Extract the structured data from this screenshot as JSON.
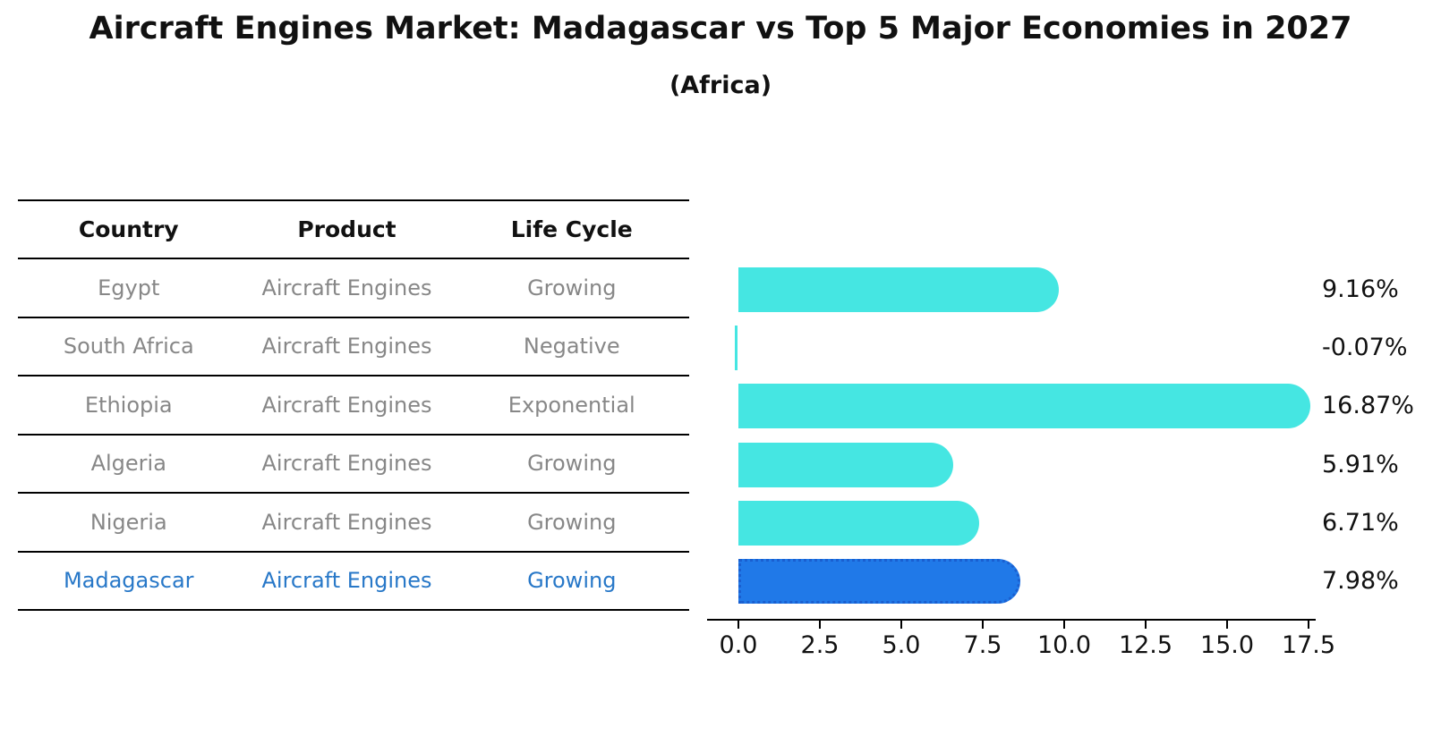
{
  "title": "Aircraft Engines Market: Madagascar vs Top 5 Major Economies in 2027",
  "subtitle": "(Africa)",
  "table": {
    "columns": [
      "Country",
      "Product",
      "Life Cycle"
    ],
    "rows": [
      {
        "country": "Egypt",
        "product": "Aircraft Engines",
        "life_cycle": "Growing",
        "highlight": false
      },
      {
        "country": "South Africa",
        "product": "Aircraft Engines",
        "life_cycle": "Negative",
        "highlight": false
      },
      {
        "country": "Ethiopia",
        "product": "Aircraft Engines",
        "life_cycle": "Exponential",
        "highlight": false
      },
      {
        "country": "Algeria",
        "product": "Aircraft Engines",
        "life_cycle": "Growing",
        "highlight": false
      },
      {
        "country": "Nigeria",
        "product": "Aircraft Engines",
        "life_cycle": "Growing",
        "highlight": false
      },
      {
        "country": "Madagascar",
        "product": "Aircraft Engines",
        "life_cycle": "Growing",
        "highlight": true
      }
    ]
  },
  "chart_data": {
    "type": "bar",
    "orientation": "horizontal",
    "title": "Aircraft Engines Market: Madagascar vs Top 5 Major Economies in 2027",
    "subtitle": "(Africa)",
    "categories": [
      "Egypt",
      "South Africa",
      "Ethiopia",
      "Algeria",
      "Nigeria",
      "Madagascar"
    ],
    "values": [
      9.16,
      -0.07,
      16.87,
      5.91,
      6.71,
      7.98
    ],
    "value_labels": [
      "9.16%",
      "-0.07%",
      "16.87%",
      "5.91%",
      "6.71%",
      "7.98%"
    ],
    "x_tick_labels": [
      "0.0",
      "2.5",
      "5.0",
      "7.5",
      "10.0",
      "12.5",
      "15.0",
      "17.5"
    ],
    "x_ticks": [
      0.0,
      2.5,
      5.0,
      7.5,
      10.0,
      12.5,
      15.0,
      17.5
    ],
    "xlim": [
      0,
      17.5
    ],
    "highlight_index": 5,
    "grid": false,
    "legend_position": "none"
  },
  "colors": {
    "bar": "#45E6E2",
    "highlight_bar": "#2079E8",
    "highlight_border": "#1A5FD0",
    "highlight_text": "#2878C8",
    "row_text": "#878787",
    "header_text": "#111111",
    "axis": "#000000"
  }
}
